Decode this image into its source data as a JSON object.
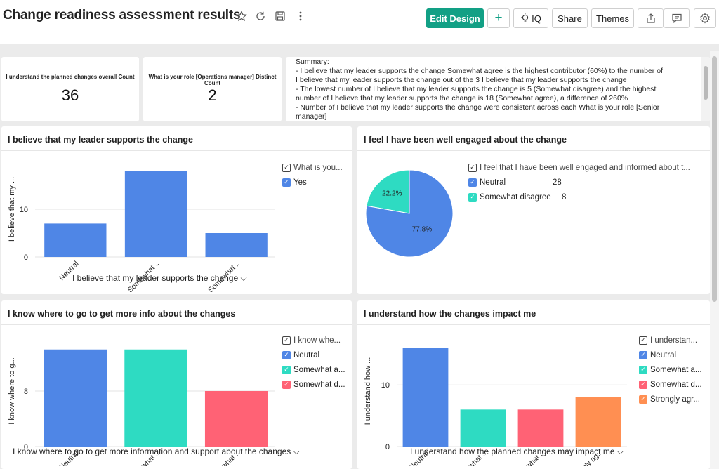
{
  "header": {
    "title": "Change readiness assessment results",
    "edit_design_label": "Edit Design",
    "add_label": "+",
    "iq_label": "IQ",
    "share_label": "Share",
    "themes_label": "Themes"
  },
  "kpis": [
    {
      "label": "I understand the planned changes overall Count",
      "value": "36"
    },
    {
      "label": "What is your role [Operations manager] Distinct Count",
      "value": "2"
    }
  ],
  "summary": {
    "lines": [
      "Summary:",
      "- I believe that my leader supports the change Somewhat agree is the highest contributor (60%) to the number of",
      "I believe that my leader supports the change out of the 3 I believe that my leader supports the change",
      "- The lowest number of I believe that my leader supports the change is 5 (Somewhat disagree) and the highest",
      "number of I believe that my leader supports the change is 18 (Somewhat agree), a difference of 260%",
      "- Number of I believe that my leader supports the change were consistent across each What is your role [Senior",
      "manager]"
    ]
  },
  "colors": {
    "blue": "#4f86e6",
    "teal": "#2edbc2",
    "red": "#ff6275",
    "orange": "#ff8f52",
    "brand_green": "#12a085"
  },
  "charts": {
    "leader": {
      "title": "I believe that my leader supports the change",
      "ylabel": "I believe that my ...",
      "ticks": [
        "10",
        "0"
      ],
      "footer": "I believe that my leader supports the change",
      "legend_title": "What is you...",
      "legend_items": [
        "Yes"
      ]
    },
    "engaged": {
      "title": "I feel I have been well engaged about the change",
      "legend_title": "I feel that I have been well engaged and informed about t...",
      "legend_items": [
        {
          "label": "Neutral",
          "value": "28"
        },
        {
          "label": "Somewhat disagree",
          "value": "8"
        }
      ],
      "slice_labels": [
        "22.2%",
        "77.8%"
      ]
    },
    "info": {
      "title": "I know where to go to get more info about the changes",
      "ylabel": "I know where to g...",
      "ticks": [
        "8",
        "0"
      ],
      "footer": "I know where to go to get more information and support about the changes",
      "legend_title": "I know whe...",
      "legend_items": [
        "Neutral",
        "Somewhat a...",
        "Somewhat d..."
      ]
    },
    "impact": {
      "title": "I understand how the changes impact me",
      "ylabel": "I understand how ...",
      "ticks": [
        "10",
        "0"
      ],
      "footer": "I understand how the planned changes may impact me",
      "legend_title": "I understan...",
      "legend_items": [
        "Neutral",
        "Somewhat a...",
        "Somewhat d...",
        "Strongly agr..."
      ]
    }
  },
  "chart_data": [
    {
      "type": "bar",
      "title": "I believe that my leader supports the change",
      "xlabel": "I believe that my leader supports the change",
      "ylabel": "I believe that my ...",
      "categories": [
        "Neutral",
        "Somewhat ..",
        "Somewhat .."
      ],
      "series": [
        {
          "name": "Yes",
          "values": [
            7,
            18,
            5
          ]
        }
      ],
      "ylim": [
        0,
        20
      ],
      "legend": "right"
    },
    {
      "type": "pie",
      "title": "I feel I have been well engaged about the change",
      "categories": [
        "Neutral",
        "Somewhat disagree"
      ],
      "values": [
        28,
        8
      ],
      "labels": [
        "77.8%",
        "22.2%"
      ],
      "legend": "right"
    },
    {
      "type": "bar",
      "title": "I know where to go to get more info about the changes",
      "xlabel": "I know where to go to get more information and support about the changes",
      "ylabel": "I know where to g...",
      "categories": [
        "Neutral",
        "Somewhat ..",
        "Somewhat .."
      ],
      "values": [
        14,
        14,
        8
      ],
      "ylim": [
        0,
        16
      ],
      "legend": "right"
    },
    {
      "type": "bar",
      "title": "I understand how the changes impact me",
      "xlabel": "I understand how the planned changes may impact me",
      "ylabel": "I understand how ...",
      "categories": [
        "Neutral",
        "Somewhat ..",
        "Somewhat ..",
        "Strongly ag.."
      ],
      "values": [
        16,
        6,
        6,
        8
      ],
      "ylim": [
        0,
        18
      ],
      "legend": "right"
    }
  ]
}
